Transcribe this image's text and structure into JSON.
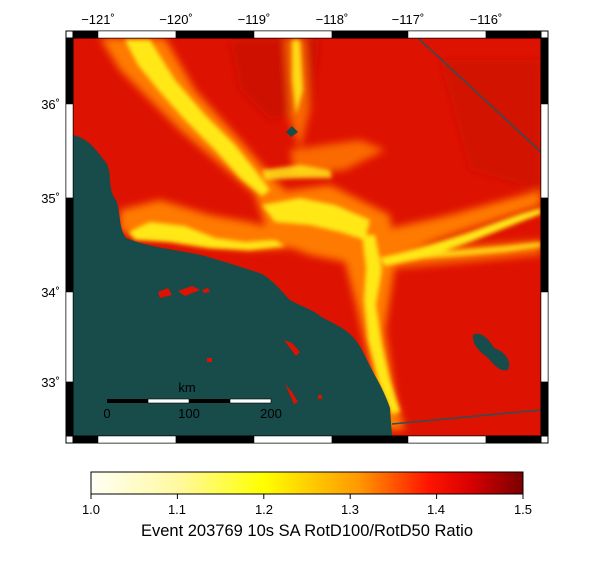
{
  "map": {
    "lon_ticks": [
      "−121˚",
      "−120˚",
      "−119˚",
      "−118˚",
      "−117˚",
      "−116˚"
    ],
    "lat_ticks": [
      "36˚",
      "35˚",
      "34˚",
      "33˚"
    ],
    "scale_bar": {
      "unit": "km",
      "labels": [
        "0",
        "100",
        "200"
      ]
    },
    "colors": {
      "ocean": "#174c4a",
      "base_red": "#de1200",
      "deep_red": "#c80e00",
      "orange": "#ff7a00",
      "yellow": "#ffe818",
      "fault_line": "#2d4f55"
    }
  },
  "colorbar": {
    "min": 1.0,
    "max": 1.5,
    "tick_labels": [
      "1.0",
      "1.1",
      "1.2",
      "1.3",
      "1.4",
      "1.5"
    ],
    "title": "Event 203769 10s SA RotD100/RotD50 Ratio",
    "stops": [
      "#fffff5",
      "#fff9a0",
      "#ffff00",
      "#ff9800",
      "#ff1500",
      "#d80000",
      "#7a0000"
    ]
  }
}
